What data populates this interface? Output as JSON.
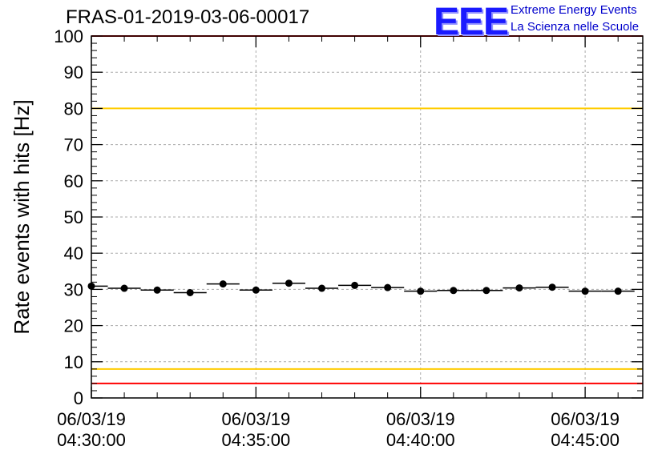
{
  "header": {
    "run_title": "FRAS-01-2019-03-06-00017",
    "logo_text": "EEE",
    "logo_line1": "Extreme Energy Events",
    "logo_line2": "La Scienza nelle Scuole"
  },
  "chart_data": {
    "type": "scatter",
    "title": "FRAS-01-2019-03-06-00017",
    "xlabel": "",
    "ylabel": "Rate events with hits [Hz]",
    "ylim": [
      0,
      100
    ],
    "xlim": [
      "2019-03-06 04:30:00",
      "2019-03-06 04:46:45"
    ],
    "grid": true,
    "y_ticks": [
      0,
      10,
      20,
      30,
      40,
      50,
      60,
      70,
      80,
      90,
      100
    ],
    "x_ticks": [
      {
        "x": "2019-03-06 04:30:00",
        "date": "06/03/19",
        "time": "04:30:00"
      },
      {
        "x": "2019-03-06 04:35:00",
        "date": "06/03/19",
        "time": "04:35:00"
      },
      {
        "x": "2019-03-06 04:40:00",
        "date": "06/03/19",
        "time": "04:40:00"
      },
      {
        "x": "2019-03-06 04:45:00",
        "date": "06/03/19",
        "time": "04:45:00"
      }
    ],
    "bin_width_seconds": 60,
    "series": [
      {
        "values": [
          {
            "x": "2019-03-06 04:30:00",
            "y": 30.9
          },
          {
            "x": "2019-03-06 04:31:00",
            "y": 30.3
          },
          {
            "x": "2019-03-06 04:32:00",
            "y": 29.8
          },
          {
            "x": "2019-03-06 04:33:00",
            "y": 29.1
          },
          {
            "x": "2019-03-06 04:34:00",
            "y": 31.5
          },
          {
            "x": "2019-03-06 04:35:00",
            "y": 29.8
          },
          {
            "x": "2019-03-06 04:36:00",
            "y": 31.7
          },
          {
            "x": "2019-03-06 04:37:00",
            "y": 30.3
          },
          {
            "x": "2019-03-06 04:38:00",
            "y": 31.1
          },
          {
            "x": "2019-03-06 04:39:00",
            "y": 30.5
          },
          {
            "x": "2019-03-06 04:40:00",
            "y": 29.5
          },
          {
            "x": "2019-03-06 04:41:00",
            "y": 29.7
          },
          {
            "x": "2019-03-06 04:42:00",
            "y": 29.7
          },
          {
            "x": "2019-03-06 04:43:00",
            "y": 30.4
          },
          {
            "x": "2019-03-06 04:44:00",
            "y": 30.6
          },
          {
            "x": "2019-03-06 04:45:00",
            "y": 29.5
          },
          {
            "x": "2019-03-06 04:46:00",
            "y": 29.5
          }
        ],
        "color": "#000000"
      }
    ],
    "reference_lines": [
      {
        "y": 100,
        "color": "#ff0000"
      },
      {
        "y": 80,
        "color": "#ffcc00"
      },
      {
        "y": 8,
        "color": "#ffcc00"
      },
      {
        "y": 4,
        "color": "#ff0000"
      }
    ]
  }
}
